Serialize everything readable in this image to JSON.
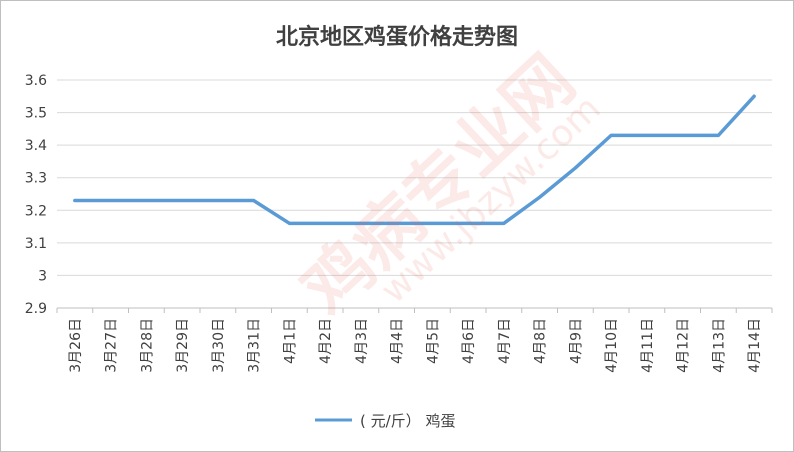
{
  "chart_data": {
    "type": "line",
    "title": "北京地区鸡蛋价格走势图",
    "categories": [
      "3月26日",
      "3月27日",
      "3月28日",
      "3月29日",
      "3月30日",
      "3月31日",
      "4月1日",
      "4月2日",
      "4月3日",
      "4月4日",
      "4月5日",
      "4月6日",
      "4月7日",
      "4月8日",
      "4月9日",
      "4月10日",
      "4月11日",
      "4月12日",
      "4月13日",
      "4月14日"
    ],
    "series": [
      {
        "name": "( 元/斤） 鸡蛋",
        "values": [
          3.23,
          3.23,
          3.23,
          3.23,
          3.23,
          3.23,
          3.16,
          3.16,
          3.16,
          3.16,
          3.16,
          3.16,
          3.16,
          3.24,
          3.33,
          3.43,
          3.43,
          3.43,
          3.43,
          3.55
        ]
      }
    ],
    "ylim": [
      2.9,
      3.6
    ],
    "yticks": [
      "2.9",
      "3",
      "3.1",
      "3.2",
      "3.3",
      "3.4",
      "3.5",
      "3.6"
    ],
    "xlabel": "",
    "ylabel": "",
    "grid": true,
    "legend": "bottom",
    "colors": {
      "line": "#5b9bd5",
      "grid": "#d9d9d9",
      "axis": "#bfbfbf",
      "text": "#404040"
    }
  },
  "watermark": {
    "brand": "鸡病专业网",
    "url": "www.jbzyw.com"
  }
}
